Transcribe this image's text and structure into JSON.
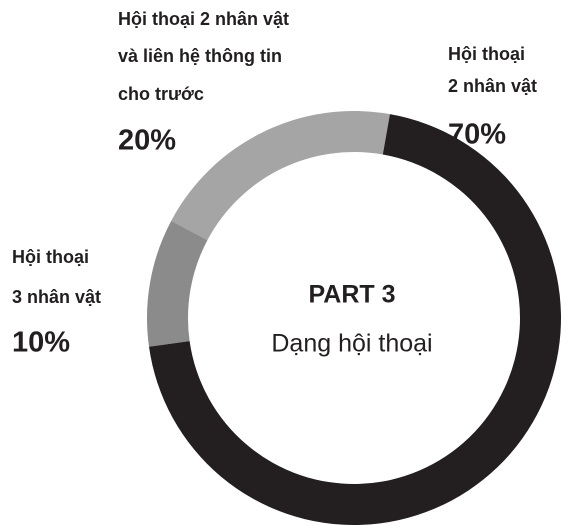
{
  "chart_data": {
    "type": "pie",
    "title": [
      "PART 3",
      "Dạng hội thoại"
    ],
    "categories": [
      [
        "Hội thoại",
        "2 nhân vật"
      ],
      [
        "Hội thoại",
        "3 nhân vật"
      ],
      [
        "Hội thoại 2 nhân vật",
        "và liên hệ thông tin",
        "cho trước"
      ]
    ],
    "values": [
      70,
      10,
      20
    ],
    "value_labels": [
      "70%",
      "10%",
      "20%"
    ],
    "colors": [
      "#231f20",
      "#8b8b8b",
      "#a5a5a5"
    ]
  }
}
